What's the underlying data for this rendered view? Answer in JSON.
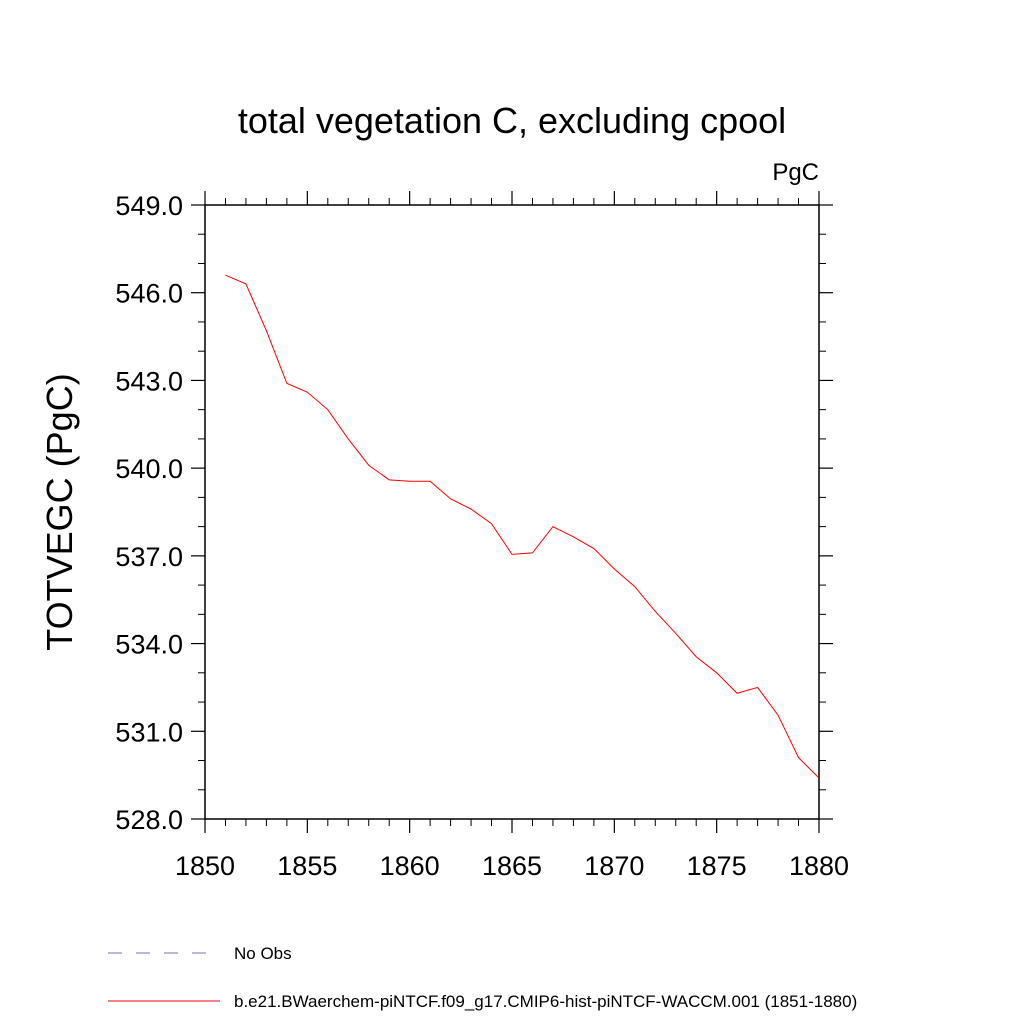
{
  "chart_data": {
    "type": "line",
    "title": "total vegetation C, excluding cpool",
    "units": "PgC",
    "ylabel": "TOTVEGC  (PgC)",
    "xlabel": "",
    "xlim": [
      1850,
      1880
    ],
    "ylim": [
      528.0,
      549.0
    ],
    "x_ticks": [
      "1850",
      "1855",
      "1860",
      "1865",
      "1870",
      "1875",
      "1880"
    ],
    "y_ticks": [
      "528.0",
      "531.0",
      "534.0",
      "537.0",
      "540.0",
      "543.0",
      "546.0",
      "549.0"
    ],
    "grid": false,
    "legend_position": "bottom",
    "series": [
      {
        "name": "b.e21.BWaerchem-piNTCF.f09_g17.CMIP6-hist-piNTCF-WACCM.001 (1851-1880)",
        "color": "#ff0000",
        "style": "solid",
        "x": [
          1851,
          1852,
          1853,
          1854,
          1855,
          1856,
          1857,
          1858,
          1859,
          1860,
          1861,
          1862,
          1863,
          1864,
          1865,
          1866,
          1867,
          1868,
          1869,
          1870,
          1871,
          1872,
          1873,
          1874,
          1875,
          1876,
          1877,
          1878,
          1879,
          1880
        ],
        "y": [
          546.6,
          546.3,
          544.7,
          542.9,
          542.6,
          542.0,
          541.0,
          540.1,
          539.6,
          539.55,
          539.55,
          538.95,
          538.6,
          538.1,
          537.05,
          537.1,
          538.0,
          537.65,
          537.25,
          536.55,
          535.95,
          535.1,
          534.35,
          533.55,
          533.0,
          532.3,
          532.5,
          531.55,
          530.1,
          529.4
        ]
      },
      {
        "name": "No Obs",
        "color": "#7b6fc2",
        "style": "dashed",
        "x": [],
        "y": []
      }
    ]
  }
}
